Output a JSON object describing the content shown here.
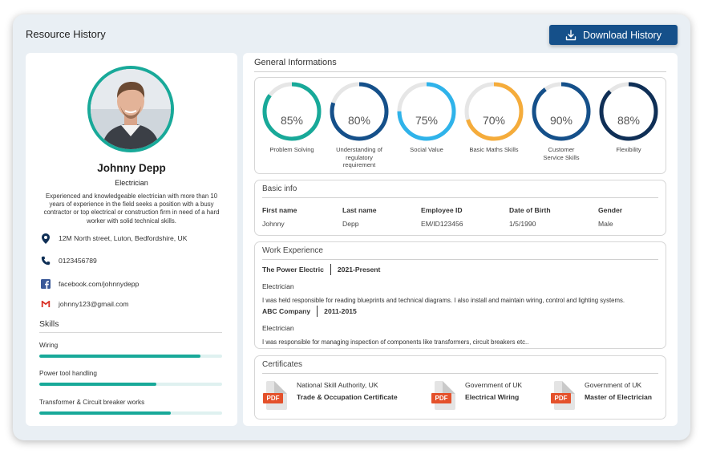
{
  "header": {
    "title": "Resource History",
    "download_label": "Download History"
  },
  "profile": {
    "name": "Johnny Depp",
    "role": "Electrician",
    "bio": "Experienced and knowledgeable electrician with more than 10 years of experience in the field seeks a position with a busy contractor or top electrical or construction firm in need of a hard worker with solid technical skills.",
    "contacts": {
      "address": "12M North street, Luton, Bedfordshire, UK",
      "phone": "0123456789",
      "facebook": "facebook.com/johnnydepp",
      "email": "johnny123@gmail.com"
    },
    "skills_title": "Skills",
    "skills": [
      {
        "label": "Wiring",
        "level": 0.88
      },
      {
        "label": "Power tool handling",
        "level": 0.64
      },
      {
        "label": "Transformer & Circuit breaker works",
        "level": 0.72
      }
    ]
  },
  "general": {
    "title": "General Informations",
    "gauges": [
      {
        "value": 85,
        "text": "85%",
        "label": "Problem Solving",
        "color": "#18a999"
      },
      {
        "value": 80,
        "text": "80%",
        "label": "Understanding of regulatory requirement",
        "color": "#15508a"
      },
      {
        "value": 75,
        "text": "75%",
        "label": "Social Value",
        "color": "#2fb3ea"
      },
      {
        "value": 70,
        "text": "70%",
        "label": "Basic Maths Skills",
        "color": "#f5ac3b"
      },
      {
        "value": 90,
        "text": "90%",
        "label": "Customer Service Skills",
        "color": "#15508a"
      },
      {
        "value": 88,
        "text": "88%",
        "label": "Flexibility",
        "color": "#0f2f56"
      }
    ]
  },
  "basic_info": {
    "title": "Basic info",
    "columns": [
      {
        "header": "First name",
        "value": "Johnny"
      },
      {
        "header": "Last name",
        "value": "Depp"
      },
      {
        "header": "Employee ID",
        "value": "EM/ID123456"
      },
      {
        "header": "Date of Birth",
        "value": "1/5/1990"
      },
      {
        "header": "Gender",
        "value": "Male"
      }
    ]
  },
  "work_experience": {
    "title": "Work Experience",
    "jobs": [
      {
        "company": "The Power Electric",
        "period": "2021-Present",
        "role": "Electrician",
        "description": "I was held responsible for reading blueprints and technical diagrams. I also install and maintain wiring, control and lighting systems."
      },
      {
        "company": "ABC Company",
        "period": "2011-2015",
        "role": "Electrician",
        "description": "I was responsible for managing inspection of components like transformers, circuit breakers etc.."
      }
    ]
  },
  "certificates": {
    "title": "Certificates",
    "badge": "PDF",
    "items": [
      {
        "issuer": "National Skill Authority, UK",
        "name": "Trade & Occupation Certificate"
      },
      {
        "issuer": "Government of UK",
        "name": "Electrical Wiring"
      },
      {
        "issuer": "Government of UK",
        "name": "Master of Electrician"
      }
    ]
  }
}
